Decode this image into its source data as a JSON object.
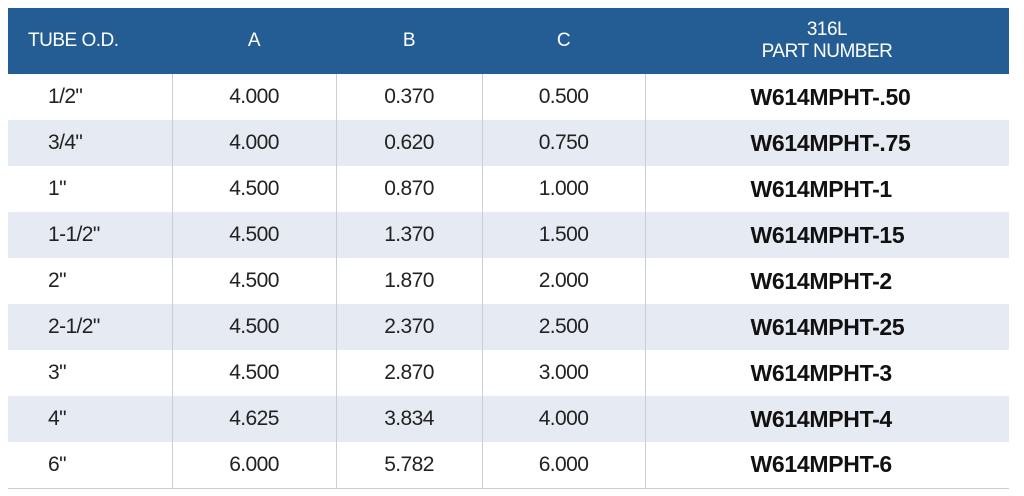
{
  "table": {
    "headers": {
      "tube_od": "TUBE O.D.",
      "a": "A",
      "b": "B",
      "c": "C",
      "part_line1": "316L",
      "part_line2": "PART NUMBER"
    },
    "rows": [
      {
        "tube_od": "1/2\"",
        "a": "4.000",
        "b": "0.370",
        "c": "0.500",
        "part": "W614MPHT-.50"
      },
      {
        "tube_od": "3/4\"",
        "a": "4.000",
        "b": "0.620",
        "c": "0.750",
        "part": "W614MPHT-.75"
      },
      {
        "tube_od": "1\"",
        "a": "4.500",
        "b": "0.870",
        "c": "1.000",
        "part": "W614MPHT-1"
      },
      {
        "tube_od": "1-1/2\"",
        "a": "4.500",
        "b": "1.370",
        "c": "1.500",
        "part": "W614MPHT-15"
      },
      {
        "tube_od": "2\"",
        "a": "4.500",
        "b": "1.870",
        "c": "2.000",
        "part": "W614MPHT-2"
      },
      {
        "tube_od": "2-1/2\"",
        "a": "4.500",
        "b": "2.370",
        "c": "2.500",
        "part": "W614MPHT-25"
      },
      {
        "tube_od": "3\"",
        "a": "4.500",
        "b": "2.870",
        "c": "3.000",
        "part": "W614MPHT-3"
      },
      {
        "tube_od": "4\"",
        "a": "4.625",
        "b": "3.834",
        "c": "4.000",
        "part": "W614MPHT-4"
      },
      {
        "tube_od": "6\"",
        "a": "6.000",
        "b": "5.782",
        "c": "6.000",
        "part": "W614MPHT-6"
      }
    ]
  },
  "colors": {
    "header_bg": "#245d93",
    "stripe_bg": "#e6eaf3"
  }
}
